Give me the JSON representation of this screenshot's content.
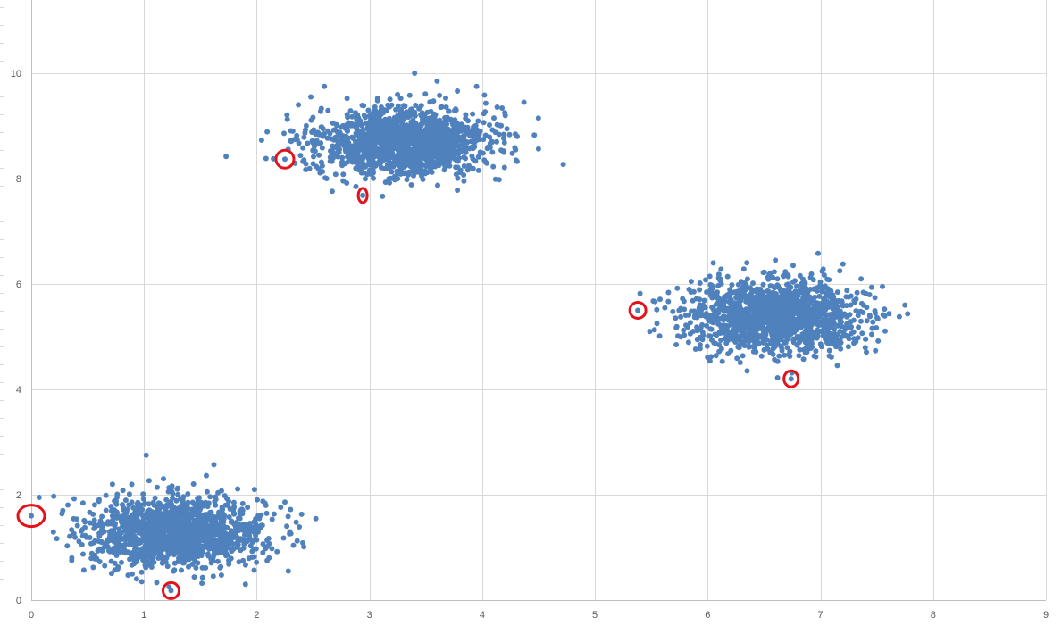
{
  "chart_data": {
    "type": "scatter",
    "title": "",
    "xlabel": "",
    "ylabel": "",
    "xlim": [
      0,
      9
    ],
    "ylim": [
      0,
      11
    ],
    "x_ticks": [
      0,
      1,
      2,
      3,
      4,
      5,
      6,
      7,
      8,
      9
    ],
    "y_ticks": [
      0,
      2,
      4,
      6,
      8,
      10
    ],
    "grid": true,
    "legend": "none",
    "marker_color": "#4f81bd",
    "highlight_color": "#e3121b",
    "series": [
      {
        "cluster_centers": [
          {
            "x": 1.3,
            "y": 1.3,
            "sd_x": 0.38,
            "sd_y": 0.32,
            "n": 1500
          },
          {
            "x": 3.3,
            "y": 8.7,
            "sd_x": 0.38,
            "sd_y": 0.32,
            "n": 1500
          },
          {
            "x": 6.6,
            "y": 5.4,
            "sd_x": 0.38,
            "sd_y": 0.32,
            "n": 1500
          }
        ],
        "outer_points": [
          {
            "x": 0.07,
            "y": 1.95
          },
          {
            "x": 0.2,
            "y": 1.97
          },
          {
            "x": 0.28,
            "y": 1.7
          },
          {
            "x": 0.36,
            "y": 0.8
          },
          {
            "x": 0.45,
            "y": 1.05
          },
          {
            "x": 0.55,
            "y": 0.62
          },
          {
            "x": 0.72,
            "y": 2.2
          },
          {
            "x": 1.02,
            "y": 2.75
          },
          {
            "x": 1.62,
            "y": 2.57
          },
          {
            "x": 1.98,
            "y": 2.1
          },
          {
            "x": 2.25,
            "y": 1.86
          },
          {
            "x": 2.3,
            "y": 1.72
          },
          {
            "x": 2.35,
            "y": 1.48
          },
          {
            "x": 2.28,
            "y": 0.55
          },
          {
            "x": 1.9,
            "y": 0.3
          },
          {
            "x": 0.98,
            "y": 0.35
          },
          {
            "x": 2.32,
            "y": 8.9
          },
          {
            "x": 2.37,
            "y": 9.4
          },
          {
            "x": 2.48,
            "y": 9.55
          },
          {
            "x": 2.6,
            "y": 9.75
          },
          {
            "x": 2.62,
            "y": 8.0
          },
          {
            "x": 2.88,
            "y": 7.85
          },
          {
            "x": 3.4,
            "y": 10.0
          },
          {
            "x": 3.6,
            "y": 9.85
          },
          {
            "x": 3.95,
            "y": 9.75
          },
          {
            "x": 4.2,
            "y": 9.25
          },
          {
            "x": 4.37,
            "y": 9.45
          },
          {
            "x": 4.3,
            "y": 8.35
          },
          {
            "x": 4.15,
            "y": 7.98
          },
          {
            "x": 3.78,
            "y": 7.78
          },
          {
            "x": 5.55,
            "y": 5.25
          },
          {
            "x": 5.62,
            "y": 5.55
          },
          {
            "x": 5.4,
            "y": 5.82
          },
          {
            "x": 5.73,
            "y": 5.92
          },
          {
            "x": 6.05,
            "y": 6.4
          },
          {
            "x": 6.6,
            "y": 6.45
          },
          {
            "x": 6.98,
            "y": 6.58
          },
          {
            "x": 7.2,
            "y": 6.38
          },
          {
            "x": 7.55,
            "y": 5.95
          },
          {
            "x": 7.75,
            "y": 5.6
          },
          {
            "x": 7.7,
            "y": 5.38
          },
          {
            "x": 7.4,
            "y": 4.95
          },
          {
            "x": 7.15,
            "y": 4.45
          },
          {
            "x": 6.62,
            "y": 4.22
          },
          {
            "x": 6.35,
            "y": 4.35
          },
          {
            "x": 6.03,
            "y": 4.62
          }
        ],
        "highlighted_points": [
          {
            "x": 0.0,
            "y": 1.6
          },
          {
            "x": 1.24,
            "y": 0.18
          },
          {
            "x": 2.25,
            "y": 8.37
          },
          {
            "x": 2.94,
            "y": 7.68
          },
          {
            "x": 5.38,
            "y": 5.5
          },
          {
            "x": 6.74,
            "y": 4.2
          }
        ]
      }
    ]
  }
}
